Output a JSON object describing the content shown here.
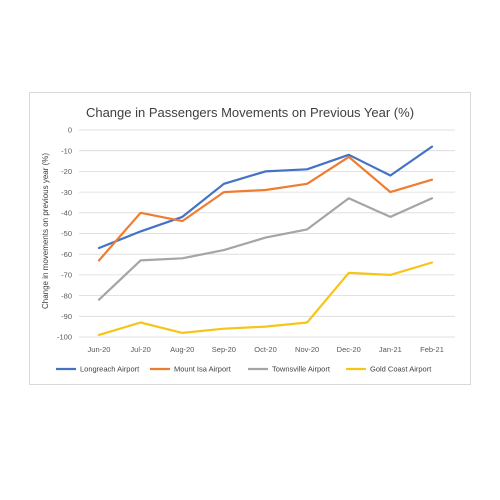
{
  "chart_data": {
    "type": "line",
    "title": "Change in Passengers Movements on Previous Year (%)",
    "ylabel": "Change in movements on previous year (%)",
    "xlabel": "",
    "categories": [
      "Jun-20",
      "Jul-20",
      "Aug-20",
      "Sep-20",
      "Oct-20",
      "Nov-20",
      "Dec-20",
      "Jan-21",
      "Feb-21"
    ],
    "ylim": [
      -100,
      0
    ],
    "yticks": [
      0,
      -10,
      -20,
      -30,
      -40,
      -50,
      -60,
      -70,
      -80,
      -90,
      -100
    ],
    "grid": true,
    "legend_position": "bottom",
    "series": [
      {
        "name": "Longreach Airport",
        "color": "#4472c4",
        "values": [
          -57,
          -49,
          -42,
          -26,
          -20,
          -19,
          -12,
          -22,
          -8
        ]
      },
      {
        "name": "Mount Isa Airport",
        "color": "#ed7d31",
        "values": [
          -63,
          -40,
          -44,
          -30,
          -29,
          -26,
          -13,
          -30,
          -24
        ]
      },
      {
        "name": "Townsville Airport",
        "color": "#a5a5a5",
        "values": [
          -82,
          -63,
          -62,
          -58,
          -52,
          -48,
          -33,
          -42,
          -33
        ]
      },
      {
        "name": "Gold Coast Airport",
        "color": "#f5c518",
        "values": [
          -99,
          -93,
          -98,
          -96,
          -95,
          -93,
          -69,
          -70,
          -64
        ]
      }
    ]
  }
}
